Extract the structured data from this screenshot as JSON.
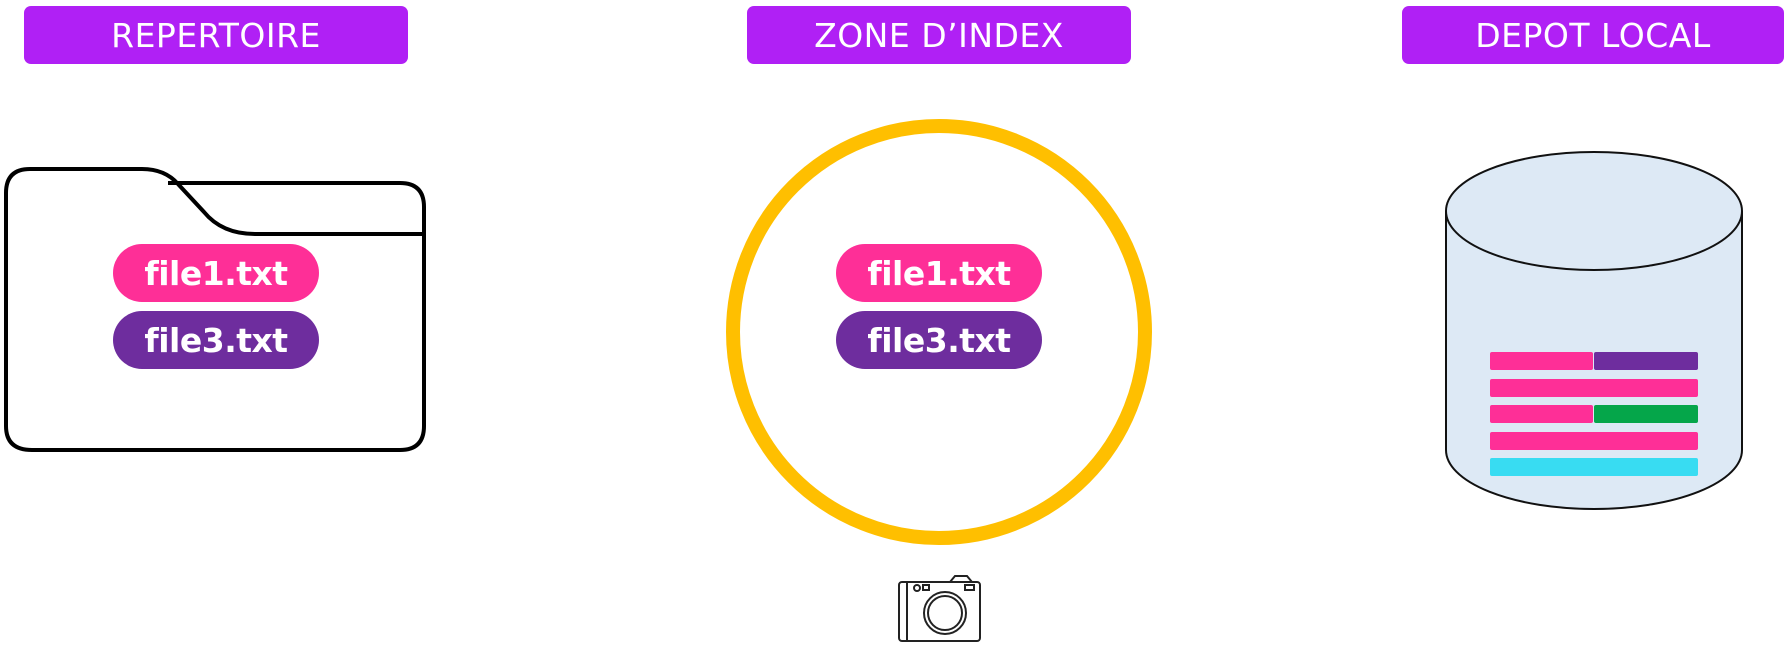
{
  "sections": [
    {
      "title": "REPERTOIRE",
      "files": [
        "file1.txt",
        "file3.txt"
      ]
    },
    {
      "title": "ZONE D’INDEX",
      "files": [
        "file1.txt",
        "file3.txt"
      ]
    },
    {
      "title": "DEPOT LOCAL"
    }
  ],
  "colors": {
    "title_bg": "#b020f5",
    "pink": "#fe2f97",
    "purple": "#6e2d9e",
    "ring": "#ffbf00",
    "db_fill": "#dde9f5",
    "green": "#05a64a",
    "cyan": "#38dcf2"
  },
  "icons": {
    "working_directory": "folder-icon",
    "staging": "circle-ring",
    "snapshot": "camera-icon",
    "repository": "database-icon"
  }
}
